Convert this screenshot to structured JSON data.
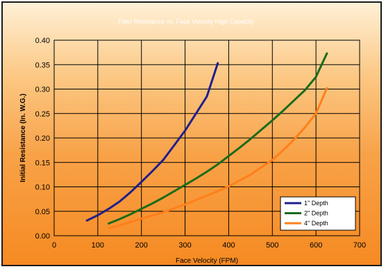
{
  "chart_data": {
    "type": "line",
    "title": "Filter Resistance vs. Face Velocity High Capacity",
    "xlabel": "Face Velocity (FPM)",
    "ylabel": "Initial Resistance (In. W.G.)",
    "xlim": [
      0,
      700
    ],
    "ylim": [
      0,
      0.4
    ],
    "xticks": [
      "0",
      "100",
      "200",
      "300",
      "400",
      "500",
      "600",
      "700"
    ],
    "yticks": [
      "0.00",
      "0.05",
      "0.10",
      "0.15",
      "0.20",
      "0.25",
      "0.30",
      "0.35",
      "0.40"
    ],
    "grid": true,
    "legend_position": "bottom-right",
    "series": [
      {
        "name": "1\" Depth",
        "color": "#1f1f8c",
        "x": [
          75,
          100,
          125,
          150,
          175,
          200,
          225,
          250,
          275,
          300,
          325,
          350,
          375
        ],
        "y": [
          0.031,
          0.042,
          0.055,
          0.07,
          0.089,
          0.11,
          0.132,
          0.155,
          0.185,
          0.215,
          0.25,
          0.285,
          0.353
        ]
      },
      {
        "name": "2\" Depth",
        "color": "#1a6b1a",
        "x": [
          125,
          150,
          175,
          200,
          225,
          250,
          275,
          300,
          325,
          350,
          375,
          400,
          425,
          450,
          475,
          500,
          525,
          550,
          575,
          600,
          625
        ],
        "y": [
          0.025,
          0.034,
          0.044,
          0.055,
          0.066,
          0.078,
          0.091,
          0.104,
          0.117,
          0.131,
          0.146,
          0.163,
          0.18,
          0.198,
          0.217,
          0.236,
          0.256,
          0.277,
          0.298,
          0.325,
          0.373
        ]
      },
      {
        "name": "4\" Depth",
        "color": "#ff7f1a",
        "x": [
          125,
          150,
          175,
          200,
          225,
          250,
          275,
          300,
          325,
          350,
          375,
          400,
          425,
          450,
          475,
          500,
          525,
          550,
          575,
          600,
          625
        ],
        "y": [
          0.016,
          0.021,
          0.028,
          0.035,
          0.041,
          0.048,
          0.056,
          0.064,
          0.073,
          0.082,
          0.091,
          0.101,
          0.113,
          0.125,
          0.14,
          0.155,
          0.175,
          0.197,
          0.222,
          0.25,
          0.302
        ]
      }
    ]
  }
}
